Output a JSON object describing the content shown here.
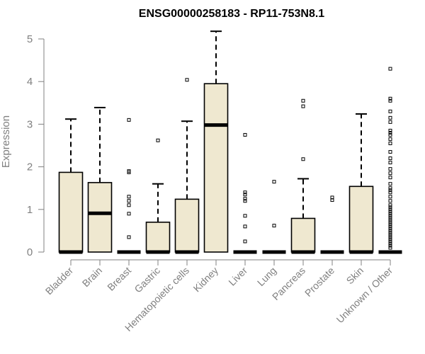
{
  "chart_data": {
    "type": "box",
    "title": "ENSG00000258183 - RP11-753N8.1",
    "xlabel": "",
    "ylabel": "Expression",
    "ylim": [
      0,
      5.2
    ],
    "yticks": [
      0,
      1,
      2,
      3,
      4,
      5
    ],
    "grid": false,
    "colors": {
      "box_fill": "#efe8d0",
      "stroke": "#000000",
      "axis": "#808080"
    },
    "categories": [
      "Bladder",
      "Brain",
      "Breast",
      "Gastric",
      "Hematopoietic cells",
      "Kidney",
      "Liver",
      "Lung",
      "Pancreas",
      "Prostate",
      "Skin",
      "Unknown / Other"
    ],
    "boxes": [
      {
        "q1": 0,
        "median": 0,
        "q3": 1.87,
        "whisker_low": 0,
        "whisker_high": 3.12,
        "outliers": []
      },
      {
        "q1": 0,
        "median": 0.91,
        "q3": 1.63,
        "whisker_low": 0,
        "whisker_high": 3.39,
        "outliers": []
      },
      {
        "q1": 0,
        "median": 0,
        "q3": 0,
        "whisker_low": 0,
        "whisker_high": 0,
        "outliers": [
          3.1,
          1.9,
          1.87,
          1.3,
          1.2,
          1.1,
          0.9,
          0.35
        ]
      },
      {
        "q1": 0,
        "median": 0,
        "q3": 0.7,
        "whisker_low": 0,
        "whisker_high": 1.6,
        "outliers": [
          2.62
        ]
      },
      {
        "q1": 0,
        "median": 0,
        "q3": 1.24,
        "whisker_low": 0,
        "whisker_high": 3.07,
        "outliers": [
          4.04
        ]
      },
      {
        "q1": 0,
        "median": 2.98,
        "q3": 3.95,
        "whisker_low": 0,
        "whisker_high": 5.18,
        "outliers": []
      },
      {
        "q1": 0,
        "median": 0,
        "q3": 0,
        "whisker_low": 0,
        "whisker_high": 0,
        "outliers": [
          2.75,
          1.4,
          1.35,
          1.25,
          1.2,
          0.85,
          0.6,
          0.25
        ]
      },
      {
        "q1": 0,
        "median": 0,
        "q3": 0,
        "whisker_low": 0,
        "whisker_high": 0,
        "outliers": [
          1.65,
          0.62
        ]
      },
      {
        "q1": 0,
        "median": 0,
        "q3": 0.79,
        "whisker_low": 0,
        "whisker_high": 1.72,
        "outliers": [
          3.55,
          3.42,
          2.18
        ]
      },
      {
        "q1": 0,
        "median": 0,
        "q3": 0,
        "whisker_low": 0,
        "whisker_high": 0,
        "outliers": [
          1.28,
          1.22
        ]
      },
      {
        "q1": 0,
        "median": 0,
        "q3": 1.54,
        "whisker_low": 0,
        "whisker_high": 3.24,
        "outliers": []
      },
      {
        "q1": 0,
        "median": 0,
        "q3": 0,
        "whisker_low": 0,
        "whisker_high": 0,
        "outliers": [
          4.3,
          3.6,
          3.55,
          3.3,
          3.15,
          3.05,
          2.85,
          2.8,
          2.75,
          2.65,
          2.55,
          2.35,
          2.2,
          2.1,
          1.95,
          1.85,
          1.75,
          1.6,
          1.5,
          1.45,
          1.4,
          1.3,
          1.2,
          1.1,
          1.05,
          1.0,
          0.95,
          0.9,
          0.85,
          0.8,
          0.75,
          0.7,
          0.65,
          0.6,
          0.55,
          0.5,
          0.45,
          0.4,
          0.35,
          0.3,
          0.25,
          0.2,
          0.15,
          0.1
        ]
      }
    ]
  }
}
